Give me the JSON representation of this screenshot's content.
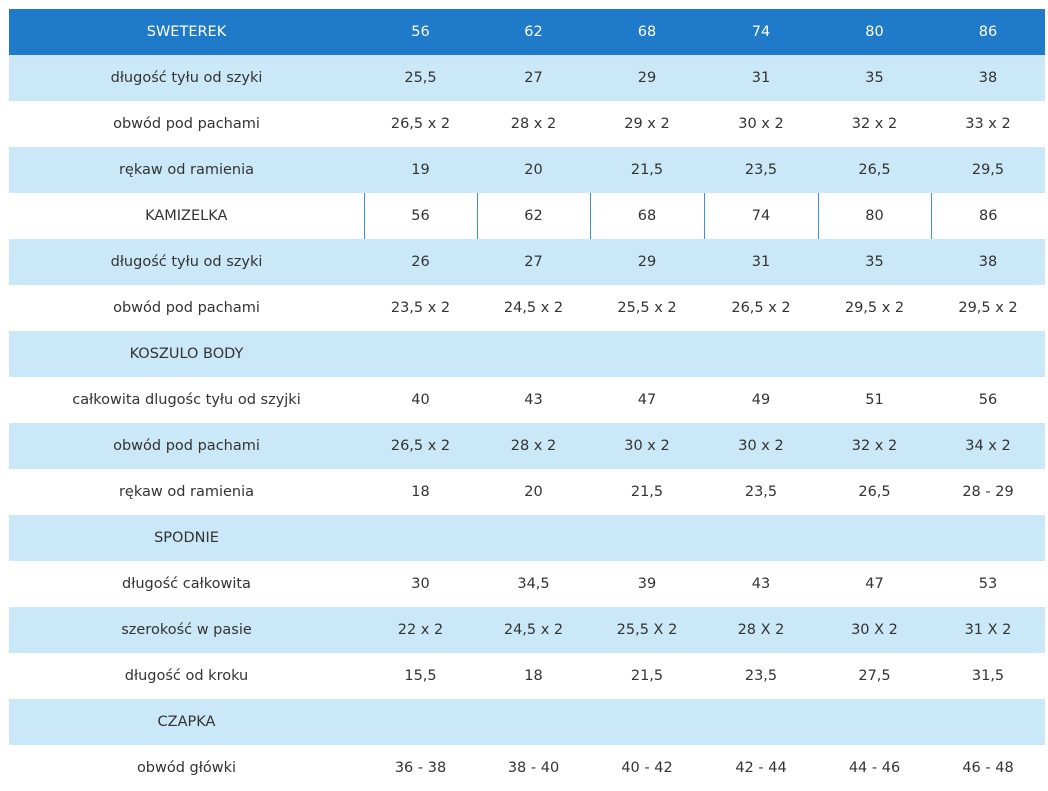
{
  "table": {
    "rows": [
      {
        "kind": "head",
        "cells": [
          "SWETEREK",
          "56",
          "62",
          "68",
          "74",
          "80",
          "86"
        ]
      },
      {
        "kind": "light",
        "cells": [
          "długość tyłu od szyki",
          "25,5",
          "27",
          "29",
          "31",
          "35",
          "38"
        ]
      },
      {
        "kind": "white",
        "cells": [
          "obwód pod pachami",
          "26,5 x 2",
          "28 x 2",
          "29 x 2",
          "30 x 2",
          "32 x 2",
          "33 x 2"
        ]
      },
      {
        "kind": "light",
        "cells": [
          "rękaw od ramienia",
          "19",
          "20",
          "21,5",
          "23,5",
          "26,5",
          "29,5"
        ]
      },
      {
        "kind": "head-split",
        "cells": [
          "KAMIZELKA",
          "56",
          "62",
          "68",
          "74",
          "80",
          "86"
        ]
      },
      {
        "kind": "light",
        "cells": [
          "długość tyłu od szyki",
          "26",
          "27",
          "29",
          "31",
          "35",
          "38"
        ]
      },
      {
        "kind": "white",
        "cells": [
          "obwód pod pachami",
          "23,5 x 2",
          "24,5 x 2",
          "25,5 x 2",
          "26,5 x 2",
          "29,5 x 2",
          "29,5 x 2"
        ]
      },
      {
        "kind": "light",
        "cells": [
          "KOSZULO BODY",
          "",
          "",
          "",
          "",
          "",
          ""
        ]
      },
      {
        "kind": "white",
        "cells": [
          "całkowita dlugośc tyłu od szyjki",
          "40",
          "43",
          "47",
          "49",
          "51",
          "56"
        ]
      },
      {
        "kind": "light",
        "cells": [
          "obwód pod pachami",
          "26,5 x 2",
          "28 x 2",
          "30 x 2",
          "30 x 2",
          "32 x 2",
          "34 x 2"
        ]
      },
      {
        "kind": "white",
        "cells": [
          "rękaw od ramienia",
          "18",
          "20",
          "21,5",
          "23,5",
          "26,5",
          "28 - 29"
        ]
      },
      {
        "kind": "light",
        "cells": [
          "SPODNIE",
          "",
          "",
          "",
          "",
          "",
          ""
        ]
      },
      {
        "kind": "white",
        "cells": [
          "długość całkowita",
          "30",
          "34,5",
          "39",
          "43",
          "47",
          "53"
        ]
      },
      {
        "kind": "light",
        "cells": [
          "szerokość w pasie",
          "22 x 2",
          "24,5 x 2",
          "25,5 X 2",
          "28 X 2",
          "30 X 2",
          "31 X 2"
        ]
      },
      {
        "kind": "white",
        "cells": [
          "długość od kroku",
          "15,5",
          "18",
          "21,5",
          "23,5",
          "27,5",
          "31,5"
        ]
      },
      {
        "kind": "light",
        "cells": [
          "CZAPKA",
          "",
          "",
          "",
          "",
          "",
          ""
        ]
      },
      {
        "kind": "white",
        "cells": [
          "obwód główki",
          "36 - 38",
          "38 - 40",
          "40 - 42",
          "42 - 44",
          "44 - 46",
          "46 - 48"
        ]
      }
    ]
  }
}
